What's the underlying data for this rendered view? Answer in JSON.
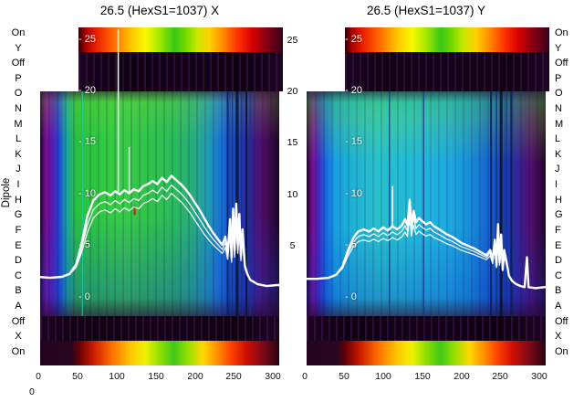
{
  "figure": {
    "dipole_label": "Dipole",
    "corner_tick": "0",
    "row_labels": [
      "On",
      "Y",
      "Off",
      "P",
      "O",
      "N",
      "M",
      "L",
      "K",
      "J",
      "I",
      "H",
      "G",
      "F",
      "E",
      "D",
      "C",
      "B",
      "A",
      "Off",
      "X",
      "On"
    ],
    "gap_tick_labels": [
      "25",
      "20",
      "15",
      "10",
      "5"
    ],
    "gap_tick_values": [
      25,
      20,
      15,
      10,
      5
    ],
    "trace_color": "#ffffff",
    "colormap": "jet-like rainbow heatmap",
    "band_rows": [
      {
        "label": "On",
        "style": "rainbow"
      },
      {
        "label": "Y / Off",
        "style": "dark-purple"
      },
      {
        "label": "P..A",
        "style": "main-heatmap"
      },
      {
        "label": "Off",
        "style": "dark-purple"
      },
      {
        "label": "X / On",
        "style": "rainbow"
      }
    ]
  },
  "chart_data": [
    {
      "type": "heatmap",
      "title": "26.5 (HexS1=1037) X",
      "xlabel": "",
      "ylabel": "Dipole",
      "xlim": [
        -5,
        315
      ],
      "ylim": [
        -6.6,
        26.2
      ],
      "x_ticks": [
        0,
        50,
        100,
        150,
        200,
        250,
        300
      ],
      "y_ticks_internal": [
        "- 25",
        "- 20",
        "- 15",
        "- 10",
        "- 5",
        "- 0"
      ],
      "y_tick_values": [
        25,
        20,
        15,
        10,
        5,
        0
      ],
      "trace_offsets": [
        -1.7,
        -0.9,
        0
      ],
      "main_trace": [
        [
          -2,
          2.0
        ],
        [
          15,
          1.9
        ],
        [
          30,
          2.0
        ],
        [
          40,
          2.3
        ],
        [
          48,
          3.2
        ],
        [
          55,
          5.2
        ],
        [
          62,
          7.8
        ],
        [
          70,
          9.4
        ],
        [
          78,
          10.0
        ],
        [
          85,
          10.2
        ],
        [
          92,
          9.9
        ],
        [
          98,
          10.3
        ],
        [
          104,
          10.0
        ],
        [
          110,
          10.4
        ],
        [
          116,
          10.1
        ],
        [
          122,
          10.5
        ],
        [
          128,
          10.3
        ],
        [
          134,
          10.8
        ],
        [
          140,
          11.0
        ],
        [
          146,
          11.3
        ],
        [
          152,
          11.0
        ],
        [
          158,
          11.6
        ],
        [
          164,
          11.2
        ],
        [
          170,
          11.8
        ],
        [
          176,
          11.4
        ],
        [
          182,
          11.0
        ],
        [
          188,
          10.5
        ],
        [
          194,
          9.9
        ],
        [
          200,
          9.2
        ],
        [
          206,
          8.5
        ],
        [
          212,
          7.7
        ],
        [
          218,
          6.9
        ],
        [
          224,
          6.2
        ],
        [
          230,
          5.6
        ],
        [
          235,
          5.1
        ],
        [
          239,
          5.9
        ],
        [
          242,
          4.3
        ],
        [
          245,
          7.6
        ],
        [
          247,
          3.9
        ],
        [
          249,
          8.6
        ],
        [
          251,
          4.6
        ],
        [
          253,
          9.1
        ],
        [
          255,
          5.1
        ],
        [
          257,
          8.1
        ],
        [
          259,
          4.1
        ],
        [
          261,
          6.6
        ],
        [
          264,
          3.1
        ],
        [
          267,
          2.3
        ],
        [
          271,
          1.7
        ],
        [
          280,
          1.3
        ],
        [
          292,
          1.1
        ],
        [
          305,
          1.2
        ],
        [
          313,
          1.2
        ]
      ],
      "spikes": [
        {
          "x": 102,
          "v1": 10.2,
          "v2": 26.0
        },
        {
          "x": 116,
          "v1": 10.2,
          "v2": 14.6
        }
      ],
      "marks": [
        {
          "x": 123,
          "v1": 8.0,
          "v2": 8.9,
          "color": "#cc2200"
        }
      ],
      "vlines": [
        {
          "x": 56,
          "w": 1,
          "c": "#20e0c0"
        },
        {
          "x": 242,
          "w": 2,
          "c": "#0a1f5e"
        },
        {
          "x": 248,
          "w": 1,
          "c": "#0d2f7a"
        },
        {
          "x": 254,
          "w": 3,
          "c": "#071838"
        },
        {
          "x": 260,
          "w": 1,
          "c": "#0d2f7a"
        },
        {
          "x": 266,
          "w": 2,
          "c": "#071838"
        },
        {
          "x": 271,
          "w": 1,
          "c": "#123a8a"
        }
      ]
    },
    {
      "type": "heatmap",
      "title": "26.5 (HexS1=1037) Y",
      "xlabel": "",
      "ylabel": "Dipole",
      "xlim": [
        -5,
        315
      ],
      "ylim": [
        -6.6,
        26.2
      ],
      "x_ticks": [
        0,
        50,
        100,
        150,
        200,
        250,
        300
      ],
      "y_ticks_internal": [
        "- 25",
        "- 20",
        "- 15",
        "- 10",
        "- 5",
        "- 0"
      ],
      "y_tick_values": [
        25,
        20,
        15,
        10,
        5,
        0
      ],
      "trace_offsets": [
        -1.4,
        -0.7,
        0
      ],
      "main_trace": [
        [
          -2,
          1.8
        ],
        [
          15,
          1.8
        ],
        [
          30,
          1.9
        ],
        [
          40,
          2.2
        ],
        [
          48,
          3.0
        ],
        [
          55,
          4.6
        ],
        [
          62,
          5.8
        ],
        [
          68,
          6.4
        ],
        [
          75,
          6.6
        ],
        [
          82,
          6.4
        ],
        [
          88,
          6.7
        ],
        [
          94,
          6.4
        ],
        [
          100,
          6.8
        ],
        [
          106,
          6.5
        ],
        [
          112,
          6.9
        ],
        [
          118,
          6.6
        ],
        [
          124,
          7.0
        ],
        [
          128,
          7.6
        ],
        [
          131,
          7.0
        ],
        [
          134,
          9.4
        ],
        [
          136,
          7.1
        ],
        [
          139,
          8.4
        ],
        [
          142,
          7.3
        ],
        [
          146,
          7.7
        ],
        [
          150,
          7.4
        ],
        [
          155,
          7.1
        ],
        [
          160,
          7.3
        ],
        [
          165,
          6.9
        ],
        [
          170,
          6.7
        ],
        [
          176,
          6.4
        ],
        [
          182,
          6.1
        ],
        [
          188,
          5.9
        ],
        [
          194,
          5.6
        ],
        [
          200,
          5.3
        ],
        [
          206,
          5.1
        ],
        [
          212,
          4.9
        ],
        [
          218,
          4.7
        ],
        [
          225,
          4.4
        ],
        [
          232,
          4.1
        ],
        [
          237,
          4.6
        ],
        [
          240,
          3.6
        ],
        [
          243,
          5.6
        ],
        [
          245,
          3.1
        ],
        [
          247,
          7.1
        ],
        [
          249,
          3.4
        ],
        [
          251,
          6.1
        ],
        [
          253,
          2.7
        ],
        [
          255,
          4.6
        ],
        [
          258,
          3.4
        ],
        [
          261,
          2.1
        ],
        [
          265,
          1.6
        ],
        [
          270,
          1.3
        ],
        [
          276,
          1.1
        ],
        [
          281,
          1.0
        ],
        [
          284,
          3.9
        ],
        [
          286,
          1.0
        ],
        [
          295,
          0.9
        ],
        [
          306,
          1.0
        ],
        [
          313,
          1.0
        ]
      ],
      "spikes": [
        {
          "x": 112,
          "v1": 6.9,
          "v2": 10.8
        },
        {
          "x": 134,
          "v1": 7.0,
          "v2": 9.6
        }
      ],
      "marks": [],
      "vlines": [
        {
          "x": 108,
          "w": 1,
          "c": "#0a3a80"
        },
        {
          "x": 152,
          "w": 1,
          "c": "#0a3a80"
        },
        {
          "x": 238,
          "w": 2,
          "c": "#082050"
        },
        {
          "x": 245,
          "w": 1,
          "c": "#0a2a6a"
        },
        {
          "x": 251,
          "w": 3,
          "c": "#061530"
        },
        {
          "x": 258,
          "w": 1,
          "c": "#0a2a6a"
        },
        {
          "x": 264,
          "w": 2,
          "c": "#082050"
        }
      ]
    }
  ]
}
